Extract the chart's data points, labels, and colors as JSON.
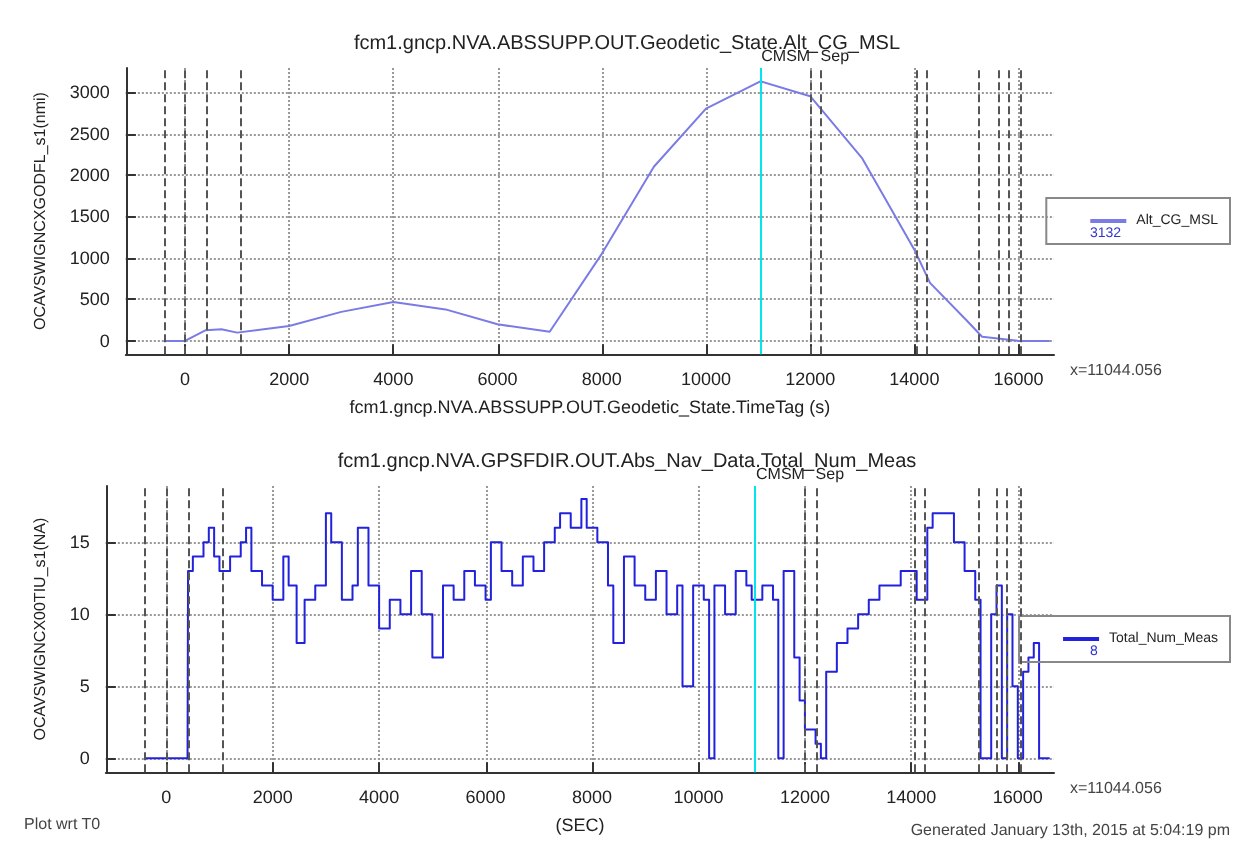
{
  "chart_data": [
    {
      "type": "line",
      "title": "fcm1.gncp.NVA.ABSSUPP.OUT.Geodetic_State.Alt_CG_MSL",
      "xlabel": "fcm1.gncp.NVA.ABSSUPP.OUT.Geodetic_State.TimeTag (s)",
      "ylabel": "OCAVSWIGNCXGODFL_s1(nmi)",
      "series": [
        {
          "name": "Alt_CG_MSL",
          "color": "#7b7be6",
          "x": [
            -400,
            0,
            400,
            700,
            1000,
            2000,
            3000,
            4000,
            5000,
            6000,
            7000,
            8000,
            9000,
            10000,
            11044,
            12000,
            13000,
            14000,
            14300,
            15000,
            15300,
            16000,
            16600
          ],
          "values": [
            0,
            0,
            130,
            140,
            100,
            180,
            350,
            470,
            380,
            200,
            110,
            1050,
            2100,
            2800,
            3130,
            2950,
            2200,
            1100,
            700,
            250,
            50,
            0,
            0
          ]
        }
      ],
      "xlim": [
        -1135,
        16680
      ],
      "xticks": [
        0,
        2000,
        4000,
        6000,
        8000,
        10000,
        12000,
        14000,
        16000
      ],
      "ylim": [
        -160,
        3290
      ],
      "yticks": [
        0,
        500,
        1000,
        1500,
        2000,
        2500,
        3000
      ],
      "grid": true,
      "legend": "right",
      "marker": "none",
      "line_style": "solid",
      "ref_lines": [
        {
          "axis": "x",
          "value": -400,
          "color": "#555555",
          "line_style": "dashed"
        },
        {
          "axis": "x",
          "value": 0,
          "color": "#555555",
          "line_style": "dashed"
        },
        {
          "axis": "x",
          "value": 400,
          "color": "#555555",
          "line_style": "dashed"
        },
        {
          "axis": "x",
          "value": 1050,
          "color": "#555555",
          "line_style": "dashed"
        },
        {
          "axis": "x",
          "value": 11044,
          "color": "#00e5ee",
          "line_style": "solid"
        },
        {
          "axis": "x",
          "value": 12000,
          "label": "CMSM",
          "color": "#555555",
          "line_style": "dashed"
        },
        {
          "axis": "x",
          "value": 12200,
          "label": "Sep",
          "color": "#555555",
          "line_style": "dashed"
        },
        {
          "axis": "x",
          "value": 14050,
          "color": "#555555",
          "line_style": "dashed"
        },
        {
          "axis": "x",
          "value": 14250,
          "color": "#555555",
          "line_style": "dashed"
        },
        {
          "axis": "x",
          "value": 15250,
          "color": "#555555",
          "line_style": "dashed"
        },
        {
          "axis": "x",
          "value": 15600,
          "color": "#555555",
          "line_style": "dashed"
        },
        {
          "axis": "x",
          "value": 15800,
          "color": "#555555",
          "line_style": "dashed"
        },
        {
          "axis": "x",
          "value": 16050,
          "color": "#555555",
          "line_style": "dashed"
        }
      ],
      "annotations": [
        "3132",
        "x=11044.056"
      ]
    },
    {
      "type": "step",
      "title": "fcm1.gncp.NVA.GPSFDIR.OUT.Abs_Nav_Data.Total_Num_Meas",
      "xlabel": "(SEC)",
      "ylabel": "OCAVSWIGNCX00TIU_s1(NA)",
      "series": [
        {
          "name": "Total_Num_Meas",
          "color": "#2222dd",
          "x": [
            -400,
            400,
            410,
            500,
            700,
            800,
            900,
            1000,
            1200,
            1400,
            1500,
            1600,
            1800,
            2000,
            2200,
            2300,
            2450,
            2600,
            2800,
            3000,
            3100,
            3300,
            3500,
            3600,
            3800,
            4000,
            4200,
            4400,
            4600,
            4800,
            5000,
            5200,
            5400,
            5600,
            5800,
            6000,
            6100,
            6300,
            6500,
            6700,
            6900,
            7100,
            7300,
            7400,
            7600,
            7800,
            7900,
            8100,
            8300,
            8400,
            8600,
            8800,
            9000,
            9200,
            9400,
            9600,
            9700,
            9900,
            10100,
            10200,
            10300,
            10500,
            10700,
            10900,
            11000,
            11200,
            11400,
            11500,
            11600,
            11800,
            11900,
            12000,
            12200,
            12300,
            12400,
            12600,
            12800,
            13000,
            13200,
            13400,
            13600,
            13800,
            14000,
            14100,
            14300,
            14400,
            14600,
            14800,
            15000,
            15200,
            15300,
            15500,
            15600,
            15700,
            15800,
            15900,
            16000,
            16100,
            16200,
            16300,
            16400,
            16600
          ],
          "values": [
            0,
            0,
            13,
            14,
            15,
            16,
            14,
            13,
            14,
            15,
            16,
            13,
            12,
            11,
            14,
            12,
            8,
            11,
            12,
            17,
            15,
            11,
            12,
            16,
            12,
            9,
            11,
            10,
            13,
            10,
            7,
            12,
            11,
            13,
            12,
            11,
            15,
            13,
            12,
            14,
            13,
            15,
            16,
            17,
            16,
            18,
            16,
            15,
            12,
            8,
            14,
            12,
            11,
            13,
            10,
            12,
            5,
            12,
            11,
            0,
            12,
            10,
            13,
            12,
            11,
            12,
            11,
            0,
            13,
            7,
            4,
            2,
            1,
            0,
            6,
            8,
            9,
            10,
            11,
            12,
            12,
            13,
            13,
            11,
            16,
            17,
            17,
            15,
            13,
            11,
            0,
            10,
            12,
            0,
            10,
            5,
            0,
            6,
            7,
            8,
            0,
            0
          ]
        }
      ],
      "xlim": [
        -1135,
        16680
      ],
      "xticks": [
        0,
        2000,
        4000,
        6000,
        8000,
        10000,
        12000,
        14000,
        16000
      ],
      "ylim": [
        -0.97,
        18.9
      ],
      "yticks": [
        0,
        5,
        10,
        15
      ],
      "grid": true,
      "legend": "right",
      "marker": "none",
      "line_style": "solid",
      "ref_lines": [
        {
          "axis": "x",
          "value": -400,
          "color": "#555555",
          "line_style": "dashed"
        },
        {
          "axis": "x",
          "value": 0,
          "color": "#555555",
          "line_style": "dashed"
        },
        {
          "axis": "x",
          "value": 400,
          "color": "#555555",
          "line_style": "dashed"
        },
        {
          "axis": "x",
          "value": 1050,
          "color": "#555555",
          "line_style": "dashed"
        },
        {
          "axis": "x",
          "value": 11044,
          "color": "#00e5ee",
          "line_style": "solid"
        },
        {
          "axis": "x",
          "value": 12000,
          "label": "CMSM",
          "color": "#555555",
          "line_style": "dashed"
        },
        {
          "axis": "x",
          "value": 12200,
          "label": "Sep",
          "color": "#555555",
          "line_style": "dashed"
        },
        {
          "axis": "x",
          "value": 14050,
          "color": "#555555",
          "line_style": "dashed"
        },
        {
          "axis": "x",
          "value": 14250,
          "color": "#555555",
          "line_style": "dashed"
        },
        {
          "axis": "x",
          "value": 15250,
          "color": "#555555",
          "line_style": "dashed"
        },
        {
          "axis": "x",
          "value": 15600,
          "color": "#555555",
          "line_style": "dashed"
        },
        {
          "axis": "x",
          "value": 15800,
          "color": "#555555",
          "line_style": "dashed"
        },
        {
          "axis": "x",
          "value": 16050,
          "color": "#555555",
          "line_style": "dashed"
        }
      ],
      "annotations": [
        "8",
        "x=11044.056",
        "Plot wrt T0",
        "Generated January 13th, 2015 at 5:04:19 pm"
      ]
    }
  ]
}
